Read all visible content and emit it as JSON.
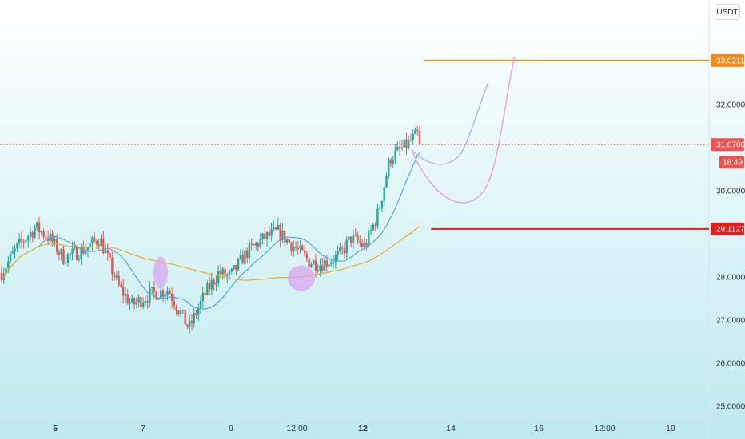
{
  "chart_data": {
    "type": "candlestick",
    "unit": "USDT",
    "y_range": [
      24.8,
      34.2
    ],
    "price_labels": [
      "33.0211",
      "32.0000",
      "31.0700",
      "30.0000",
      "29.1127",
      "28.0000",
      "27.0000",
      "26.0000",
      "25.0000"
    ],
    "y_ticks": [
      32.0,
      30.0,
      28.0,
      27.0,
      26.0,
      25.0
    ],
    "x_labels": [
      {
        "text": "5",
        "bold": true
      },
      {
        "text": "7",
        "bold": false
      },
      {
        "text": "9",
        "bold": false
      },
      {
        "text": "12:00",
        "bold": false
      },
      {
        "text": "12",
        "bold": true
      },
      {
        "text": "14",
        "bold": false
      },
      {
        "text": "16",
        "bold": false
      },
      {
        "text": "12:00",
        "bold": false
      },
      {
        "text": "19",
        "bold": false
      }
    ],
    "current_price": {
      "value": 31.07,
      "label": "31.0700",
      "countdown": "18:49",
      "color": "#ef5350"
    },
    "levels": [
      {
        "value": 33.0211,
        "label": "33.0211",
        "color": "#f5891e"
      },
      {
        "value": 29.1127,
        "label": "29.1127",
        "color": "#e51c1c"
      }
    ],
    "ma_fast": {
      "color": "#4aa3e0"
    },
    "ma_slow": {
      "color": "#f2a51d"
    },
    "projections": [
      {
        "name": "short-projection",
        "color": "#b3b8f0"
      },
      {
        "name": "long-projection",
        "color": "#e8a3e8"
      }
    ],
    "highlights": [
      {
        "name": "highlight-1",
        "color": "#d9a2f0"
      },
      {
        "name": "highlight-2",
        "color": "#d9a2f0"
      }
    ],
    "candle_colors": {
      "up": "#26a69a",
      "down": "#ef5350"
    }
  }
}
